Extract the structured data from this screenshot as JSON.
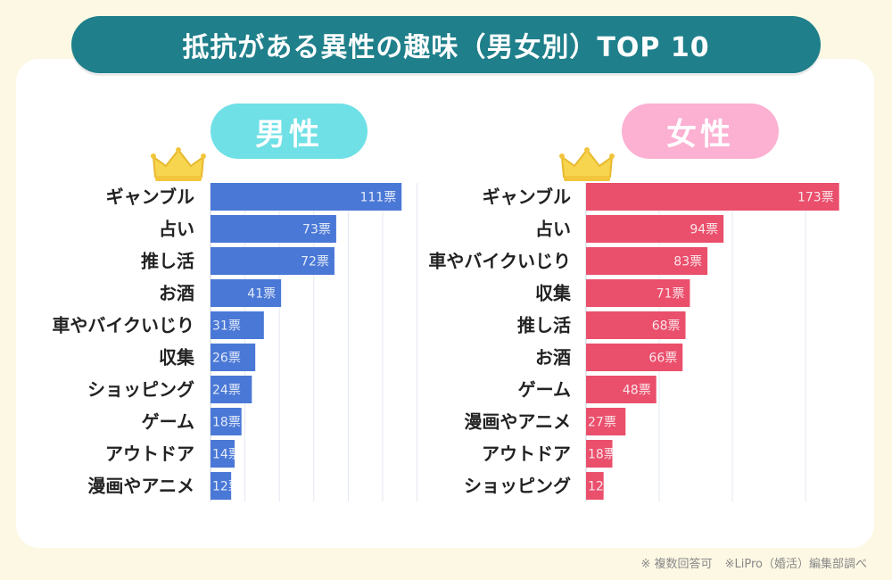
{
  "title": "抵抗がある異性の趣味（男女別）TOP 10",
  "footnotes": [
    "※ 複数回答可",
    "※LiPro（婚活）編集部調べ"
  ],
  "colors": {
    "banner": "#1f7f8a",
    "male_bar": "#4a78d6",
    "female_bar": "#ea4f6c",
    "male_pill": "#6fe0e6",
    "female_pill": "#fcb0d2",
    "crown": "#f7d54e"
  },
  "chart_data": [
    {
      "type": "bar",
      "orientation": "horizontal",
      "title": "男性",
      "value_suffix": "票",
      "categories": [
        "ギャンブル",
        "占い",
        "推し活",
        "お酒",
        "車やバイクいじり",
        "収集",
        "ショッピング",
        "ゲーム",
        "アウトドア",
        "漫画やアニメ"
      ],
      "values": [
        111,
        73,
        72,
        41,
        31,
        26,
        24,
        18,
        14,
        12
      ],
      "xlim": [
        0,
        120
      ],
      "grid": true
    },
    {
      "type": "bar",
      "orientation": "horizontal",
      "title": "女性",
      "value_suffix": "票",
      "categories": [
        "ギャンブル",
        "占い",
        "車やバイクいじり",
        "収集",
        "推し活",
        "お酒",
        "ゲーム",
        "漫画やアニメ",
        "アウトドア",
        "ショッピング"
      ],
      "values": [
        173,
        94,
        83,
        71,
        68,
        66,
        48,
        27,
        18,
        12
      ],
      "xlim": [
        0,
        190
      ],
      "grid": true
    }
  ]
}
